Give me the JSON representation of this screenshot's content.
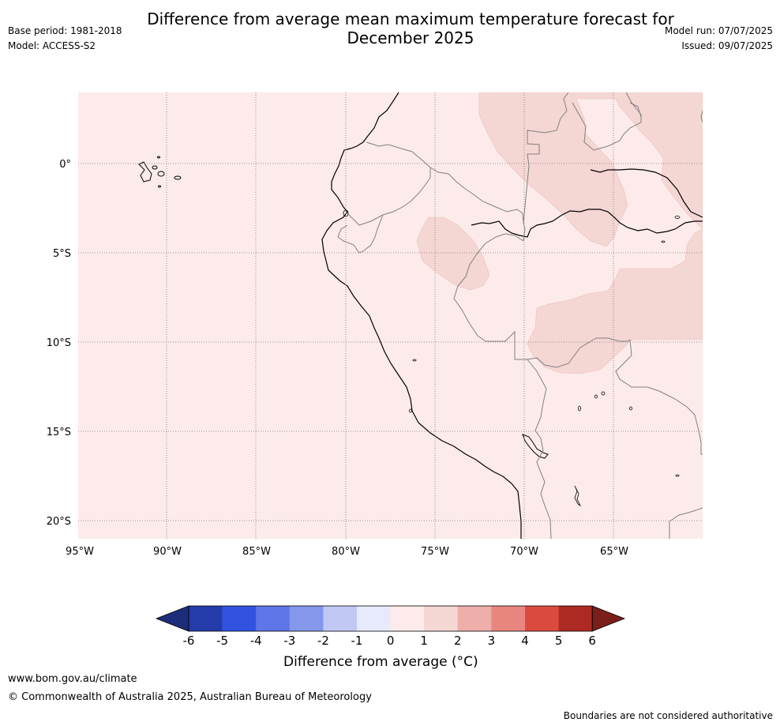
{
  "title": {
    "line1": "Difference from average mean maximum temperature forecast for",
    "line2": "December 2025"
  },
  "meta": {
    "base_period": "Base period: 1981-2018",
    "model": "Model: ACCESS-S2",
    "model_run": "Model run: 07/07/2025",
    "issued": "Issued: 09/07/2025"
  },
  "map": {
    "lat_labels": [
      "0°",
      "5°S",
      "10°S",
      "15°S",
      "20°S"
    ],
    "lon_labels": [
      "95°W",
      "90°W",
      "85°W",
      "80°W",
      "75°W",
      "70°W",
      "65°W"
    ]
  },
  "colorbar": {
    "ticks": [
      "-6",
      "-5",
      "-4",
      "-3",
      "-2",
      "-1",
      "0",
      "1",
      "2",
      "3",
      "4",
      "5",
      "6"
    ],
    "colors": [
      "#253ba9",
      "#3153e0",
      "#5e76e6",
      "#8497eb",
      "#c0c8f3",
      "#e7eafb",
      "#fcebea",
      "#f4d6d3",
      "#eeaeaa",
      "#e7867f",
      "#db4a3f",
      "#ad2a22"
    ],
    "under_color": "#1e2d7a",
    "over_color": "#7a1f1a",
    "label": "Difference from average (°C)"
  },
  "colors": {
    "sea_and_land_0_1": "#fcebea",
    "land_1_2": "#f4d6d3",
    "coast": "#000000",
    "border": "#808080"
  },
  "footer": {
    "website": "www.bom.gov.au/climate",
    "copyright": "© Commonwealth of Australia 2025, Australian Bureau of Meteorology",
    "disclaimer": "Boundaries are not considered authoritative"
  }
}
